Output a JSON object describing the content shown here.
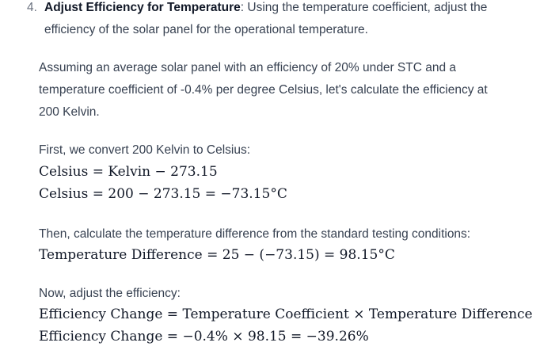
{
  "list_item": {
    "number": "4.",
    "title": "Adjust Efficiency for Temperature",
    "text_line1": ": Using the temperature coefficient, adjust the",
    "text_line2": "efficiency of the solar panel for the operational temperature."
  },
  "para1": {
    "line1": "Assuming an average solar panel with an efficiency of 20% under STC and a",
    "line2": "temperature coefficient of -0.4% per degree Celsius, let's calculate the efficiency at",
    "line3": "200 Kelvin."
  },
  "para2": {
    "intro": "First, we convert 200 Kelvin to Celsius:",
    "eq1": "Celsius = Kelvin − 273.15",
    "eq2": "Celsius = 200 − 273.15 = −73.15°C"
  },
  "para3": {
    "intro": "Then, calculate the temperature difference from the standard testing conditions:",
    "eq1": "Temperature Difference = 25 − (−73.15) = 98.15°C"
  },
  "para4": {
    "intro": "Now, adjust the efficiency:",
    "eq1": "Efficiency Change = Temperature Coefficient × Temperature Difference",
    "eq2": "Efficiency Change = −0.4% × 98.15 = −39.26%"
  },
  "colors": {
    "text": "#374151",
    "bold_text": "#111827",
    "list_number": "#6b7280",
    "background": "#ffffff"
  }
}
